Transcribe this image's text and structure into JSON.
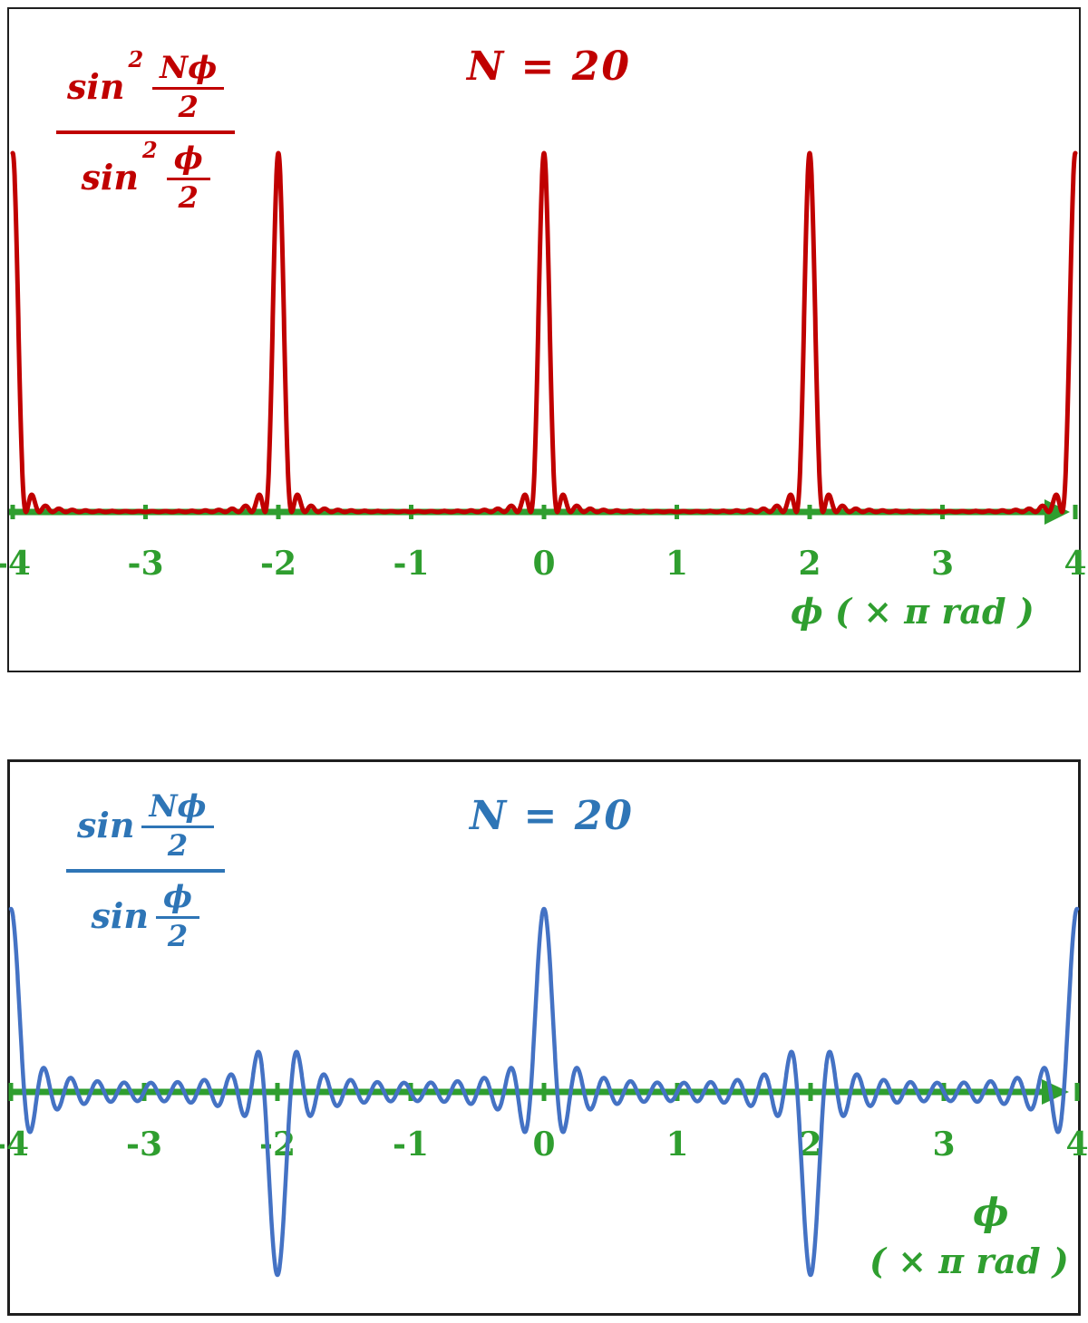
{
  "panels": [
    {
      "title": "N = 20",
      "formula": {
        "fn": "sin",
        "exponent": "2",
        "num_top": "Nϕ",
        "num_bottom": "2",
        "den_fn": "sin",
        "den_exponent": "2",
        "den_top": "ϕ",
        "den_bottom": "2"
      },
      "xlabel": "ϕ  ( × π  rad )"
    },
    {
      "title": "N = 20",
      "formula": {
        "fn": "sin",
        "num_top": "Nϕ",
        "num_bottom": "2",
        "den_fn": "sin",
        "den_top": "ϕ",
        "den_bottom": "2"
      },
      "xlabel_line1": "ϕ",
      "xlabel_line2": "( × π  rad )"
    }
  ],
  "chart_data": [
    {
      "type": "line",
      "title": "N = 20",
      "function": "sin2_ratio",
      "formula_text": "sin²(Nϕ/2) / sin²(ϕ/2)",
      "N": 20,
      "x_range": [
        -4,
        4
      ],
      "x_unit": "π rad",
      "xlabel": "ϕ ( × π rad )",
      "y_range": [
        0,
        400
      ],
      "x_ticks": [
        -4,
        -3,
        -2,
        -1,
        0,
        1,
        2,
        3,
        4
      ],
      "principal_maxima": {
        "x": [
          -4,
          -2,
          0,
          2,
          4
        ],
        "value": 400
      },
      "curve_color": "#c00000",
      "axis_color": "#2f9e2f",
      "grid": false,
      "legend": false
    },
    {
      "type": "line",
      "title": "N = 20",
      "function": "sin_ratio",
      "formula_text": "sin(Nϕ/2) / sin(ϕ/2)",
      "N": 20,
      "x_range": [
        -4,
        4
      ],
      "x_unit": "π rad",
      "xlabel": "ϕ ( × π rad )",
      "y_range": [
        -20,
        20
      ],
      "x_ticks": [
        -4,
        -3,
        -2,
        -1,
        0,
        1,
        2,
        3,
        4
      ],
      "peaks": [
        {
          "x": -4,
          "value": 20
        },
        {
          "x": -2,
          "value": -20
        },
        {
          "x": 0,
          "value": 20
        },
        {
          "x": 2,
          "value": -20
        },
        {
          "x": 4,
          "value": 20
        }
      ],
      "curve_color": "#4472c4",
      "axis_color": "#2f9e2f",
      "grid": false,
      "legend": false
    }
  ]
}
